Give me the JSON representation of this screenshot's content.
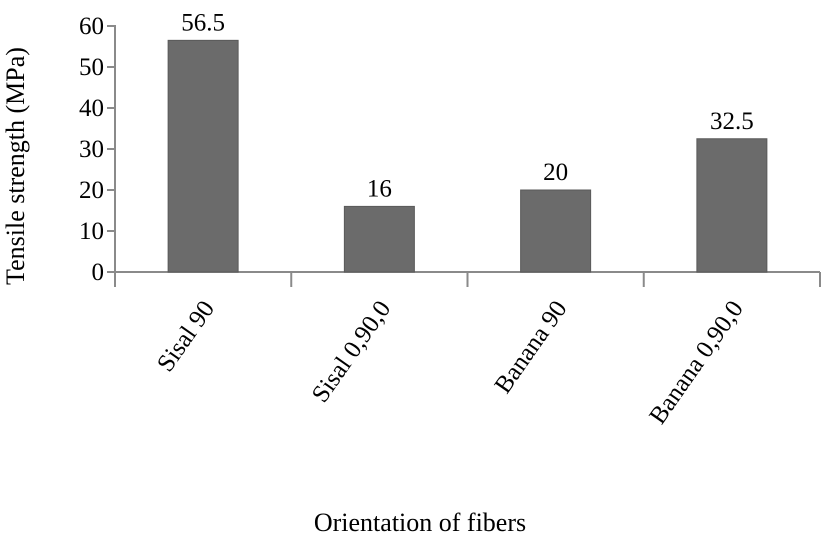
{
  "chart_data": {
    "type": "bar",
    "title": "",
    "xlabel": "Orientation of fibers",
    "ylabel": "Tensile strength (MPa)",
    "categories": [
      "Sisal 90",
      "Sisal 0,90,0",
      "Banana 90",
      "Banana 0,90,0"
    ],
    "values": [
      56.5,
      16,
      20,
      32.5
    ],
    "value_labels": [
      "56.5",
      "16",
      "20",
      "32.5"
    ],
    "ylim": [
      0,
      60
    ],
    "yticks": [
      0,
      10,
      20,
      30,
      40,
      50,
      60
    ],
    "grid": false,
    "legend": null,
    "bar_color": "#6b6b6b",
    "axis_color": "#8a8a8a"
  }
}
